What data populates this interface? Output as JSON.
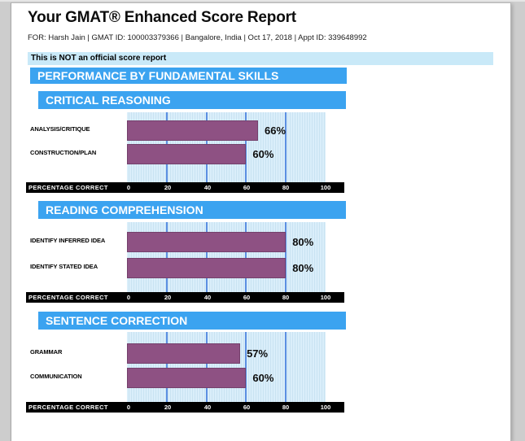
{
  "report": {
    "title": "Your GMAT® Enhanced Score Report",
    "meta": "FOR: Harsh Jain | GMAT ID: 100003379366 | Bangalore, India | Oct 17, 2018 | Appt ID: 339648992",
    "notice": "This is NOT an official score report",
    "section_header": "PERFORMANCE BY FUNDAMENTAL SKILLS"
  },
  "axis": {
    "label": "PERCENTAGE CORRECT",
    "ticks": [
      "0",
      "20",
      "40",
      "60",
      "80",
      "100"
    ]
  },
  "colors": {
    "header_blue": "#3BA3F0",
    "notice_blue": "#C9E9F8",
    "bar_purple": "#8E5183",
    "gridline_blue": "#5C8FE2",
    "plot_stripe_light": "#DAEEFA",
    "plot_stripe_dark": "#C9E3F2",
    "axis_bar": "#000000"
  },
  "chart_data": [
    {
      "type": "bar",
      "orientation": "horizontal",
      "title": "CRITICAL REASONING",
      "categories": [
        "ANALYSIS/CRITIQUE",
        "CONSTRUCTION/PLAN"
      ],
      "values": [
        66,
        60
      ],
      "value_labels": [
        "66%",
        "60%"
      ],
      "xlabel": "PERCENTAGE CORRECT",
      "xlim": [
        0,
        100
      ],
      "xticks": [
        0,
        20,
        40,
        60,
        80,
        100
      ],
      "grid": true,
      "bar_color": "#8E5183"
    },
    {
      "type": "bar",
      "orientation": "horizontal",
      "title": "READING COMPREHENSION",
      "categories": [
        "IDENTIFY INFERRED IDEA",
        "IDENTIFY STATED IDEA"
      ],
      "values": [
        80,
        80
      ],
      "value_labels": [
        "80%",
        "80%"
      ],
      "xlabel": "PERCENTAGE CORRECT",
      "xlim": [
        0,
        100
      ],
      "xticks": [
        0,
        20,
        40,
        60,
        80,
        100
      ],
      "grid": true,
      "bar_color": "#8E5183"
    },
    {
      "type": "bar",
      "orientation": "horizontal",
      "title": "SENTENCE CORRECTION",
      "categories": [
        "GRAMMAR",
        "COMMUNICATION"
      ],
      "values": [
        57,
        60
      ],
      "value_labels": [
        "57%",
        "60%"
      ],
      "xlabel": "PERCENTAGE CORRECT",
      "xlim": [
        0,
        100
      ],
      "xticks": [
        0,
        20,
        40,
        60,
        80,
        100
      ],
      "grid": true,
      "bar_color": "#8E5183"
    }
  ]
}
